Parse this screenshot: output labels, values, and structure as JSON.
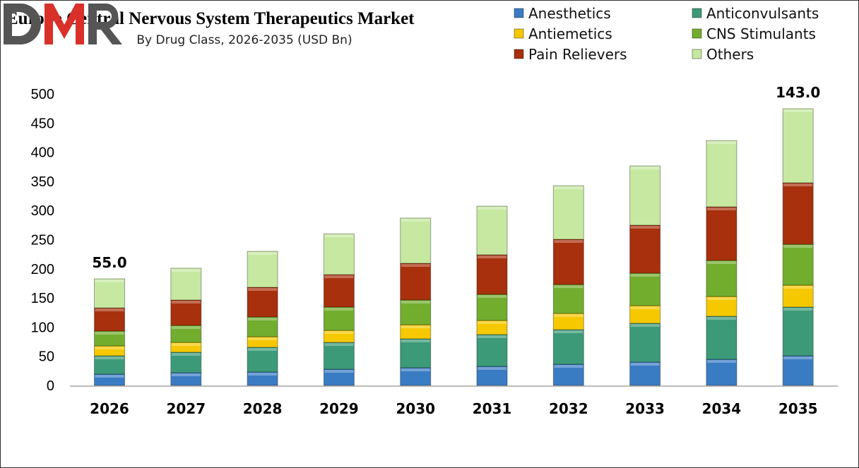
{
  "chart_data": {
    "type": "bar",
    "stacked": true,
    "title": "Europe Central Nervous System Therapeutics Market",
    "subtitle": "By Drug Class, 2026-2035 (USD Bn)",
    "xlabel": "",
    "ylabel": "",
    "ylim": [
      0,
      500
    ],
    "yticks": [
      0,
      50,
      100,
      150,
      200,
      250,
      300,
      350,
      400,
      450,
      500
    ],
    "grid": false,
    "legend_position": "top-right",
    "categories": [
      "2026",
      "2027",
      "2028",
      "2029",
      "2030",
      "2031",
      "2032",
      "2033",
      "2034",
      "2035"
    ],
    "series": [
      {
        "name": "Anesthetics",
        "color": "#3a7cc4",
        "values": [
          19.4,
          21.8,
          23.0,
          27.8,
          30.3,
          32.7,
          36.3,
          40.0,
          44.8,
          50.8
        ]
      },
      {
        "name": "Anticonvulsants",
        "color": "#3c9a78",
        "values": [
          31.4,
          35.1,
          42.4,
          46.0,
          49.6,
          54.5,
          59.3,
          66.5,
          73.8,
          83.6
        ]
      },
      {
        "name": "Antiemetics",
        "color": "#f5c800",
        "values": [
          17.0,
          16.9,
          18.1,
          20.6,
          24.1,
          24.2,
          27.9,
          30.3,
          33.9,
          37.5
        ]
      },
      {
        "name": "CNS Stimulants",
        "color": "#72ad2e",
        "values": [
          25.4,
          29.1,
          33.9,
          40.0,
          42.5,
          44.8,
          49.5,
          55.7,
          61.8,
          70.2
        ]
      },
      {
        "name": "Pain Relievers",
        "color": "#a8300c",
        "values": [
          39.8,
          43.6,
          50.9,
          55.6,
          62.9,
          67.8,
          77.6,
          82.3,
          92.0,
          105.4
        ]
      },
      {
        "name": "Others",
        "color": "#c6e8a0",
        "values": [
          49.8,
          54.5,
          61.7,
          70.0,
          77.6,
          83.5,
          92.0,
          101.7,
          113.7,
          127.1
        ]
      }
    ],
    "annotations": [
      {
        "category": "2026",
        "text": "55.0"
      },
      {
        "category": "2035",
        "text": "143.0"
      }
    ]
  },
  "logo": {
    "text": "DMR"
  }
}
